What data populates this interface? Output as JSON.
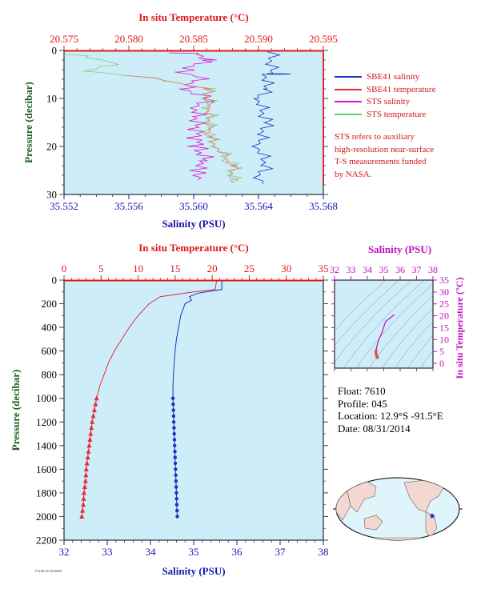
{
  "colors": {
    "plot_bg": "#cdeef8",
    "sbe_salinity": "#1f2fbf",
    "sbe_temperature": "#e8283c",
    "sts_salinity": "#e010d0",
    "sts_temperature": "#66cc66",
    "temp_axis": "#e01818",
    "sal_axis": "#1818b0",
    "pressure_axis": "#1e5e1e",
    "ts_axis": "#c010c0"
  },
  "legend": {
    "items": [
      {
        "label": "SBE41 salinity",
        "color": "#1f2fbf"
      },
      {
        "label": "SBE41 temperature",
        "color": "#e8283c"
      },
      {
        "label": "STS salinity",
        "color": "#e010d0"
      },
      {
        "label": "STS temperature",
        "color": "#66cc66"
      }
    ],
    "note_lines": [
      "STS refers to auxiliary",
      "high-resolution near-surface",
      "T-S measurements funded",
      "by NASA."
    ]
  },
  "float_info": {
    "float": "Float: 7610",
    "profile": "Profile: 045",
    "location": "Location: 12.9°S -91.5°E",
    "date": "Date: 08/31/2014"
  },
  "footer_code": "F7610C45 20140831",
  "chart_data": [
    {
      "type": "line",
      "name": "near-surface",
      "title": "",
      "top_axis_label": "In situ Temperature (°C)",
      "bottom_axis_label": "Salinity (PSU)",
      "ylabel": "Pressure (decibar)",
      "temp_ticks": [
        "20.575",
        "20.580",
        "20.585",
        "20.590",
        "20.595"
      ],
      "temp_lim": [
        20.575,
        20.595
      ],
      "sal_ticks": [
        "35.552",
        "35.556",
        "35.560",
        "35.564",
        "35.568"
      ],
      "sal_lim": [
        35.552,
        35.568
      ],
      "pressure_ticks": [
        "0",
        "10",
        "20",
        "30"
      ],
      "pressure_lim": [
        0,
        30
      ],
      "series": [
        {
          "name": "SBE41 salinity",
          "axis": "salinity",
          "points": [
            [
              35.5648,
              0.3
            ],
            [
              35.5648,
              4.8
            ],
            [
              35.5662,
              4.9
            ],
            [
              35.5645,
              5.0
            ],
            [
              35.5645,
              8.0
            ],
            [
              35.564,
              10.0
            ],
            [
              35.5645,
              15.0
            ],
            [
              35.564,
              20.0
            ],
            [
              35.5645,
              24.0
            ],
            [
              35.564,
              26.5
            ],
            [
              35.5645,
              27.8
            ]
          ]
        },
        {
          "name": "SBE41 temperature",
          "axis": "temperature",
          "points": [
            [
              20.595,
              0.3
            ],
            [
              20.595,
              27.8
            ]
          ]
        },
        {
          "name": "STS salinity",
          "axis": "salinity",
          "points": [
            [
              35.5588,
              0.5
            ],
            [
              35.5605,
              0.8
            ],
            [
              35.5608,
              2.0
            ],
            [
              35.5592,
              4.5
            ],
            [
              35.5605,
              5.5
            ],
            [
              35.5595,
              8.0
            ],
            [
              35.5608,
              10.0
            ],
            [
              35.5602,
              12.0
            ],
            [
              35.5602,
              20.0
            ],
            [
              35.5608,
              23.0
            ],
            [
              35.56,
              25.0
            ],
            [
              35.5606,
              27.0
            ]
          ]
        },
        {
          "name": "STS temperature",
          "axis": "temperature",
          "points": [
            [
              20.5753,
              0.8
            ],
            [
              20.577,
              1.5
            ],
            [
              20.579,
              2.5
            ],
            [
              20.577,
              4.3
            ],
            [
              20.58,
              5.2
            ],
            [
              20.583,
              6.3
            ],
            [
              20.586,
              8.0
            ],
            [
              20.5862,
              12.0
            ],
            [
              20.5862,
              18.0
            ],
            [
              20.5868,
              20.0
            ],
            [
              20.588,
              24.0
            ],
            [
              20.588,
              27.5
            ]
          ]
        }
      ]
    },
    {
      "type": "line",
      "name": "full-profile",
      "title": "",
      "top_axis_label": "In situ Temperature (°C)",
      "bottom_axis_label": "Salinity (PSU)",
      "ylabel": "Pressure (decibar)",
      "temp_ticks": [
        "0",
        "5",
        "10",
        "15",
        "20",
        "25",
        "30",
        "35"
      ],
      "temp_lim": [
        0,
        35
      ],
      "sal_ticks": [
        "32",
        "33",
        "34",
        "35",
        "36",
        "37",
        "38"
      ],
      "sal_lim": [
        32,
        38
      ],
      "pressure_ticks": [
        "0",
        "200",
        "400",
        "600",
        "800",
        "1000",
        "1200",
        "1400",
        "1600",
        "1800",
        "2000",
        "2200"
      ],
      "pressure_lim": [
        0,
        2200
      ],
      "series": [
        {
          "name": "SBE41 temperature",
          "axis": "temperature",
          "marker": "triangle",
          "marker_from": 1000,
          "points": [
            [
              20.6,
              0
            ],
            [
              20.4,
              80
            ],
            [
              17.5,
              100
            ],
            [
              13.0,
              140
            ],
            [
              11.5,
              200
            ],
            [
              10.0,
              300
            ],
            [
              8.8,
              400
            ],
            [
              7.8,
              500
            ],
            [
              6.8,
              600
            ],
            [
              6.0,
              700
            ],
            [
              5.4,
              800
            ],
            [
              4.8,
              900
            ],
            [
              4.4,
              1000
            ],
            [
              4.1,
              1100
            ],
            [
              3.8,
              1200
            ],
            [
              3.6,
              1300
            ],
            [
              3.4,
              1400
            ],
            [
              3.2,
              1500
            ],
            [
              3.0,
              1600
            ],
            [
              2.9,
              1700
            ],
            [
              2.7,
              1800
            ],
            [
              2.6,
              1900
            ],
            [
              2.4,
              2000
            ]
          ]
        },
        {
          "name": "SBE41 salinity",
          "axis": "salinity",
          "marker": "circle",
          "marker_from": 1000,
          "points": [
            [
              35.65,
              0
            ],
            [
              35.65,
              80
            ],
            [
              35.1,
              110
            ],
            [
              34.9,
              140
            ],
            [
              34.95,
              170
            ],
            [
              34.8,
              200
            ],
            [
              34.7,
              300
            ],
            [
              34.65,
              400
            ],
            [
              34.6,
              500
            ],
            [
              34.57,
              600
            ],
            [
              34.55,
              700
            ],
            [
              34.53,
              800
            ],
            [
              34.52,
              900
            ],
            [
              34.52,
              1000
            ],
            [
              34.53,
              1100
            ],
            [
              34.54,
              1200
            ],
            [
              34.55,
              1300
            ],
            [
              34.56,
              1400
            ],
            [
              34.57,
              1500
            ],
            [
              34.58,
              1600
            ],
            [
              34.59,
              1700
            ],
            [
              34.6,
              1800
            ],
            [
              34.61,
              1900
            ],
            [
              34.62,
              2000
            ]
          ]
        }
      ]
    },
    {
      "type": "scatter",
      "name": "ts-diagram",
      "title": "",
      "top_axis_label": "Salinity (PSU)",
      "right_axis_label": "In situ Temperature (°C)",
      "sal_ticks": [
        "32",
        "33",
        "34",
        "35",
        "36",
        "37",
        "38"
      ],
      "sal_lim": [
        32,
        38
      ],
      "temp_ticks": [
        "0",
        "5",
        "10",
        "15",
        "20",
        "25",
        "30",
        "35"
      ],
      "temp_lim": [
        -2,
        35
      ],
      "points": [
        [
          35.65,
          20.5
        ],
        [
          35.1,
          17.5
        ],
        [
          34.9,
          13.0
        ],
        [
          34.8,
          11.5
        ],
        [
          34.7,
          10.0
        ],
        [
          34.65,
          8.8
        ],
        [
          34.6,
          7.8
        ],
        [
          34.57,
          6.8
        ],
        [
          34.55,
          6.0
        ],
        [
          34.53,
          5.4
        ],
        [
          34.52,
          4.8
        ],
        [
          34.52,
          4.4
        ],
        [
          34.54,
          3.8
        ],
        [
          34.56,
          3.4
        ],
        [
          34.58,
          3.0
        ],
        [
          34.6,
          2.7
        ],
        [
          34.62,
          2.4
        ]
      ]
    }
  ],
  "map": {
    "marker_label": "float position"
  }
}
